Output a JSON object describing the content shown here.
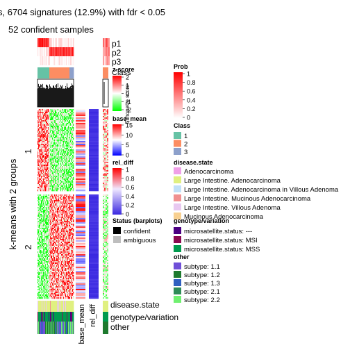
{
  "title": "s, 6704 signatures (12.9%) with fdr < 0.05",
  "subtitle": "52 confident samples",
  "row_title": "k-means with 2 groups",
  "groups": [
    "1",
    "2"
  ],
  "track_labels": [
    "p1",
    "p2",
    "p3"
  ],
  "class_label": "Class",
  "silhouette_label": "Silhouette\nscore",
  "bottom_labels": [
    "disease.state",
    "genotype/variation",
    "other"
  ],
  "column_labels": [
    "base_mean",
    "rel_diff"
  ],
  "colors": {
    "class": [
      "#66C2A5",
      "#FC8D62",
      "#8DA0CB"
    ],
    "disease_state": [
      "#F0A0E8",
      "#E0F080",
      "#C0E0F8",
      "#F09090",
      "#E8C8F0",
      "#F8D090"
    ],
    "genotype": [
      "#4B0082",
      "#8B0A50",
      "#009B4E"
    ],
    "other": [
      "#6F4FD8",
      "#1E7A2E",
      "#3060C0",
      "#2E8B57",
      "#70F070"
    ],
    "zscore": [
      "#00FF00",
      "#FFFFFF",
      "#FF0000"
    ],
    "blue_red": [
      "#0000FF",
      "#FFFFFF",
      "#FF0000"
    ],
    "prob": [
      "#FFFFFF",
      "#FF0000"
    ]
  },
  "chart_data": {
    "type": "heatmap",
    "legends": [
      {
        "title": "z-score",
        "type": "continuous",
        "ticks": [
          "2",
          "1",
          "0",
          "-1",
          "-2"
        ]
      },
      {
        "title": "base_mean",
        "type": "continuous",
        "ticks": [
          "15",
          "10",
          "5",
          "0"
        ]
      },
      {
        "title": "rel_diff",
        "type": "continuous",
        "ticks": [
          "1",
          "0.8",
          "0.6",
          "0.4",
          "0.2",
          "0"
        ]
      },
      {
        "title": "Status (barplots)",
        "type": "discrete",
        "entries": [
          "confident",
          "ambiguous"
        ],
        "colors": [
          "#000000",
          "#BEBEBE"
        ]
      },
      {
        "title": "Prob",
        "type": "continuous",
        "ticks": [
          "1",
          "0.8",
          "0.6",
          "0.4",
          "0.2",
          "0"
        ]
      },
      {
        "title": "Class",
        "type": "discrete",
        "entries": [
          "1",
          "2",
          "3"
        ]
      },
      {
        "title": "disease.state",
        "type": "discrete",
        "entries": [
          "Adenocarcinoma",
          "Large Intestine. Adenocarcinoma",
          "Large Intestine. Adenocarcinoma in Villous Adenoma",
          "Large Intestine. Mucinous Adenocarcinoma",
          "Large Intestine. Villous Adenoma",
          "Mucinous Adenocarcinoma"
        ]
      },
      {
        "title": "genotype/variation",
        "type": "discrete",
        "entries": [
          "microsatellite.status: ---",
          "microsatellite.status: MSI",
          "microsatellite.status: MSS"
        ]
      },
      {
        "title": "other",
        "type": "discrete",
        "entries": [
          "subtype: 1.1",
          "subtype: 1.2",
          "subtype: 1.3",
          "subtype: 2.1",
          "subtype: 2.2"
        ]
      }
    ]
  }
}
